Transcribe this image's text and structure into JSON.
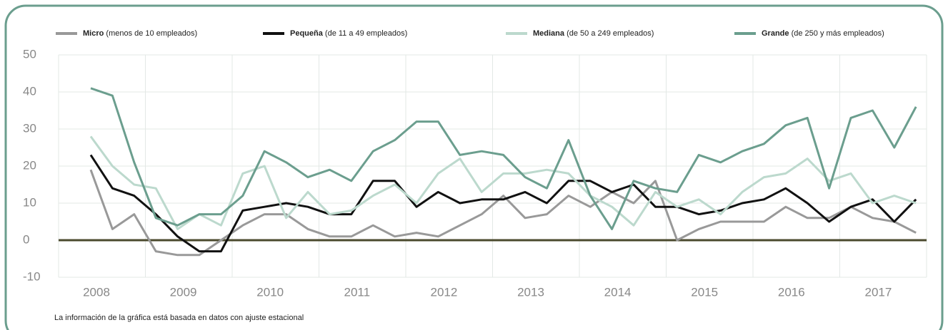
{
  "chart_data": {
    "type": "line",
    "legend": [
      {
        "name": "Micro",
        "detail": "(menos de 10 empleados)"
      },
      {
        "name": "Pequeña",
        "detail": "(de 11 a 49 empleados)"
      },
      {
        "name": "Mediana",
        "detail": "(de 50 a 249 empleados)"
      },
      {
        "name": "Grande",
        "detail": "(de 250 y más empleados)"
      }
    ],
    "note": "La información de la gráfica está basada en datos con ajuste estacional",
    "categories": [
      "2008",
      null,
      null,
      null,
      "2009",
      null,
      null,
      null,
      "2010",
      null,
      null,
      null,
      "2011",
      null,
      null,
      null,
      "2012",
      null,
      null,
      null,
      "2013",
      null,
      null,
      null,
      "2014",
      null,
      null,
      null,
      "2015",
      null,
      null,
      null,
      "2016",
      null,
      null,
      null,
      "2017",
      null,
      null
    ],
    "series": [
      {
        "name": "Micro",
        "color": "#999999",
        "values": [
          19,
          3,
          7,
          -3,
          -4,
          -4,
          0,
          4,
          7,
          7,
          3,
          1,
          1,
          4,
          1,
          2,
          1,
          4,
          7,
          12,
          6,
          7,
          12,
          9,
          13,
          10,
          16,
          0,
          3,
          5,
          5,
          5,
          9,
          6,
          6,
          9,
          6,
          5,
          2
        ]
      },
      {
        "name": "Pequeña",
        "color": "#111111",
        "values": [
          23,
          14,
          12,
          7,
          1,
          -3,
          -3,
          8,
          9,
          10,
          9,
          7,
          7,
          16,
          16,
          9,
          13,
          10,
          11,
          11,
          13,
          10,
          16,
          16,
          13,
          15,
          9,
          9,
          7,
          8,
          10,
          11,
          14,
          10,
          5,
          9,
          11,
          5,
          11
        ]
      },
      {
        "name": "Mediana",
        "color": "#bcd9cd",
        "values": [
          28,
          20,
          15,
          14,
          3,
          7,
          4,
          18,
          20,
          6,
          13,
          7,
          8,
          12,
          15,
          10,
          18,
          22,
          13,
          18,
          18,
          19,
          18,
          12,
          9,
          4,
          13,
          9,
          11,
          7,
          13,
          17,
          18,
          22,
          16,
          18,
          10,
          12,
          10
        ]
      },
      {
        "name": "Grande",
        "color": "#6b9e8e",
        "values": [
          41,
          39,
          21,
          6,
          4,
          7,
          7,
          12,
          24,
          21,
          17,
          19,
          16,
          24,
          27,
          32,
          32,
          23,
          24,
          23,
          17,
          14,
          27,
          12,
          3,
          16,
          14,
          13,
          23,
          21,
          24,
          26,
          31,
          33,
          14,
          33,
          35,
          25,
          36
        ]
      }
    ],
    "ylim": [
      -10,
      50
    ],
    "yticks": [
      -10,
      0,
      10,
      20,
      30,
      40,
      50
    ],
    "grid": true
  }
}
